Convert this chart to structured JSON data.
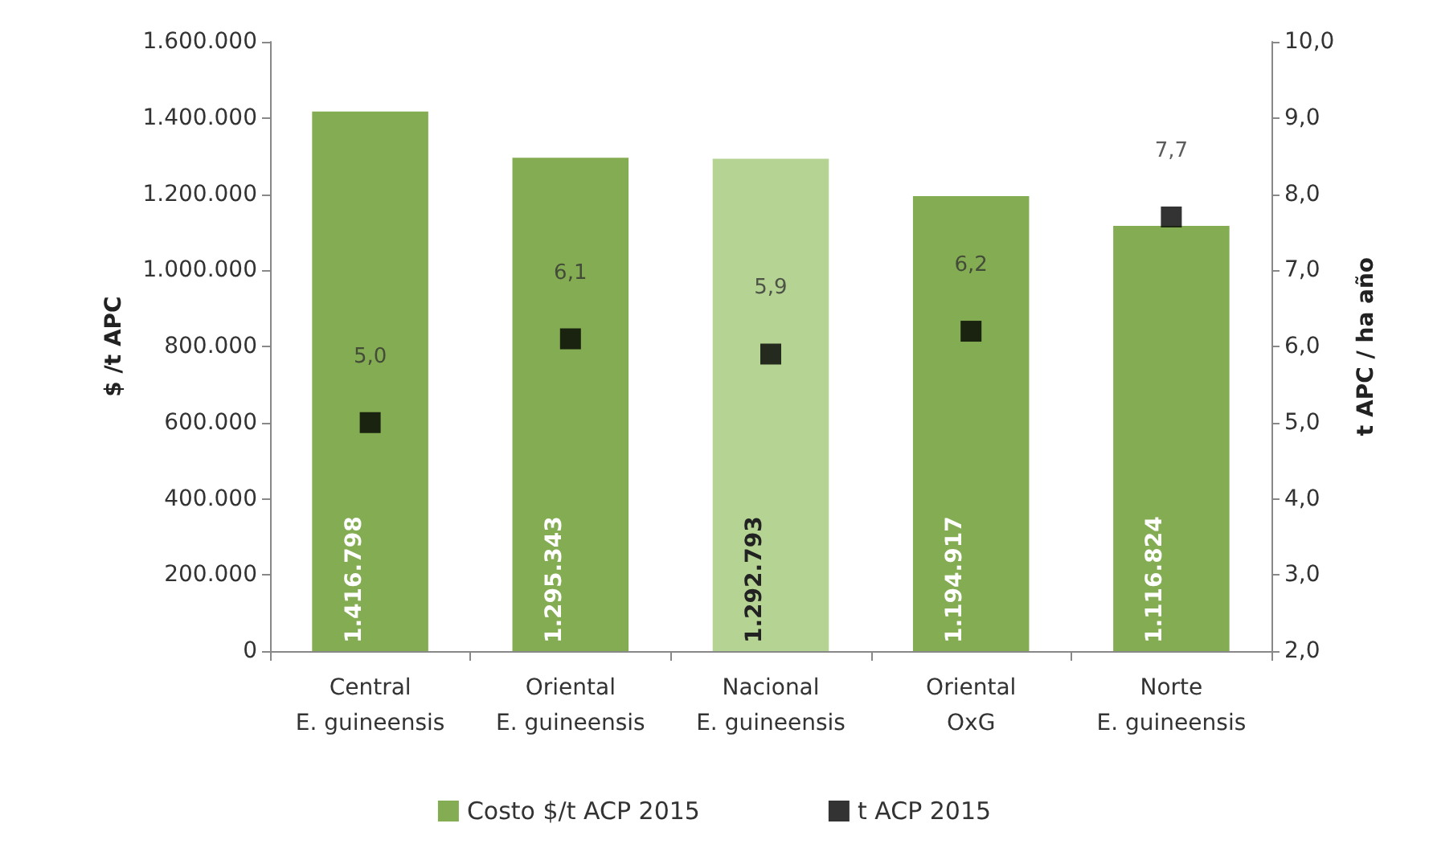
{
  "chart_data": {
    "type": "bar",
    "categories": [
      "Central\nE. guineensis",
      "Oriental\nE. guineensis",
      "Nacional\nE. guineensis",
      "Oriental\nOxG",
      "Norte\nE. guineensis"
    ],
    "ylabel": "$ /t APC",
    "y2label": "t APC / ha año",
    "ylim": [
      0,
      1600000
    ],
    "yticks": [
      {
        "value": 0,
        "label": "0"
      },
      {
        "value": 200000,
        "label": "200.000"
      },
      {
        "value": 400000,
        "label": "400.000"
      },
      {
        "value": 600000,
        "label": "600.000"
      },
      {
        "value": 800000,
        "label": "800.000"
      },
      {
        "value": 1000000,
        "label": "1.000.000"
      },
      {
        "value": 1200000,
        "label": "1.200.000"
      },
      {
        "value": 1400000,
        "label": "1.400.000"
      },
      {
        "value": 1600000,
        "label": "1.600.000"
      }
    ],
    "y2lim": [
      2,
      10
    ],
    "y2ticks": [
      {
        "value": 2,
        "label": "2,0"
      },
      {
        "value": 3,
        "label": "3,0"
      },
      {
        "value": 4,
        "label": "4,0"
      },
      {
        "value": 5,
        "label": "5,0"
      },
      {
        "value": 6,
        "label": "6,0"
      },
      {
        "value": 7,
        "label": "7,0"
      },
      {
        "value": 8,
        "label": "8,0"
      },
      {
        "value": 9,
        "label": "9,0"
      },
      {
        "value": 10,
        "label": "10,0"
      }
    ],
    "grid": false,
    "legend": "bottom",
    "series": [
      {
        "name": "Costo $/t ACP 2015",
        "type": "bar",
        "color": "#84ac52",
        "colors": [
          "#84ac52",
          "#84ac52",
          "#b5d393",
          "#84ac52",
          "#84ac52"
        ],
        "values": [
          1416798,
          1295343,
          1292793,
          1194917,
          1116824
        ],
        "value_labels": [
          "1.416.798",
          "1.295.343",
          "1.292.793",
          "1.194.917",
          "1.116.824"
        ]
      },
      {
        "name": "t ACP 2015",
        "type": "scatter",
        "axis": "y2",
        "color": "#000000",
        "marker": "square",
        "values": [
          5.0,
          6.1,
          5.9,
          6.2,
          7.7
        ],
        "value_labels": [
          "5,0",
          "6,1",
          "5,9",
          "6,2",
          "7,7"
        ]
      }
    ]
  }
}
